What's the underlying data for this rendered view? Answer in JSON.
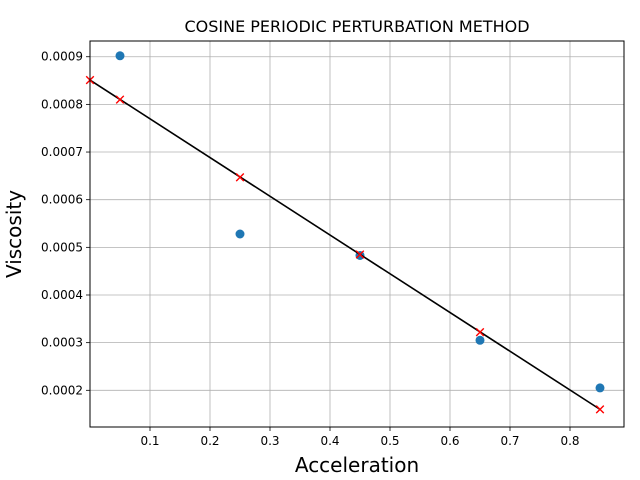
{
  "chart_data": {
    "type": "scatter",
    "title": "COSINE PERIODIC PERTURBATION METHOD",
    "xlabel": "Acceleration",
    "ylabel": "Viscosity",
    "xlim": [
      0.0,
      0.89
    ],
    "ylim": [
      0.000123,
      0.000933
    ],
    "x_ticks": [
      0.1,
      0.2,
      0.3,
      0.4,
      0.5,
      0.6,
      0.7,
      0.8
    ],
    "x_tick_labels": [
      "0.1",
      "0.2",
      "0.3",
      "0.4",
      "0.5",
      "0.6",
      "0.7",
      "0.8"
    ],
    "y_ticks": [
      0.0002,
      0.0003,
      0.0004,
      0.0005,
      0.0006,
      0.0007,
      0.0008,
      0.0009
    ],
    "y_tick_labels": [
      "0.0002",
      "0.0003",
      "0.0004",
      "0.0005",
      "0.0006",
      "0.0007",
      "0.0008",
      "0.0009"
    ],
    "grid": true,
    "series": [
      {
        "kind": "scatter",
        "marker": "circle",
        "color": "#1f77b4",
        "x": [
          0.05,
          0.25,
          0.45,
          0.65,
          0.85
        ],
        "y": [
          0.000902,
          0.000528,
          0.000483,
          0.000305,
          0.000205
        ]
      },
      {
        "kind": "line",
        "color": "#000000",
        "x": [
          0.0,
          0.85
        ],
        "y": [
          0.000851,
          0.00016
        ]
      },
      {
        "kind": "scatter",
        "marker": "x",
        "color": "#ff0000",
        "x": [
          0.0,
          0.05,
          0.25,
          0.45,
          0.65,
          0.85
        ],
        "y": [
          0.000851,
          0.00081,
          0.000647,
          0.000485,
          0.000322,
          0.00016
        ]
      }
    ]
  }
}
